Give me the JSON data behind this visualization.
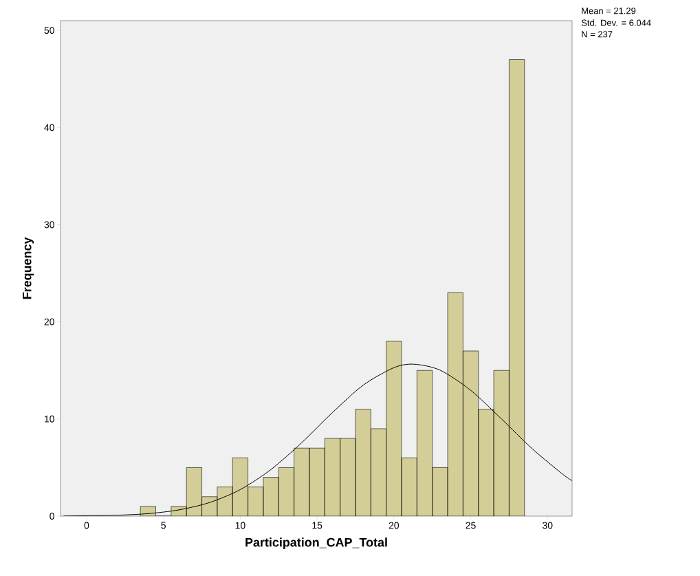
{
  "chart_data": {
    "type": "histogram",
    "xlabel": "Participation_CAP_Total",
    "ylabel": "Frequency",
    "bins": [
      3.5,
      4.5,
      5.5,
      6.5,
      7.5,
      8.5,
      9.5,
      10.5,
      11.5,
      12.5,
      13.5,
      14.5,
      15.5,
      16.5,
      17.5,
      18.5,
      19.5,
      20.5,
      21.5,
      22.5,
      23.5,
      24.5,
      25.5,
      26.5,
      27.5,
      28.5
    ],
    "values": [
      1,
      0,
      1,
      5,
      2,
      3,
      6,
      3,
      4,
      5,
      7,
      7,
      8,
      8,
      11,
      9,
      18,
      6,
      15,
      5,
      23,
      17,
      11,
      15,
      47
    ],
    "color": "#d3ce97",
    "series": [
      {
        "type": "line",
        "color": "#000000",
        "x": [
          -1.5,
          2,
          4,
          6,
          8,
          10,
          12,
          14,
          16,
          18,
          20,
          21.29,
          23,
          25,
          27,
          29,
          31,
          31.6
        ],
        "values": [
          0.01,
          0.1,
          0.26,
          0.64,
          1.4,
          2.73,
          4.8,
          7.56,
          10.66,
          13.48,
          15.28,
          15.64,
          15.03,
          12.95,
          10.01,
          6.94,
          4.3,
          3.65
        ]
      }
    ],
    "xlim": [
      -1.7,
      31.6
    ],
    "ylim": [
      0,
      51
    ],
    "xticks": [
      0,
      5,
      10,
      15,
      20,
      25,
      30
    ],
    "yticks": [
      0,
      10,
      20,
      30,
      40,
      50
    ],
    "grid": false,
    "annotations": [
      "Mean = 21.29",
      "Std. Dev. = 6.044",
      "N = 237"
    ]
  }
}
